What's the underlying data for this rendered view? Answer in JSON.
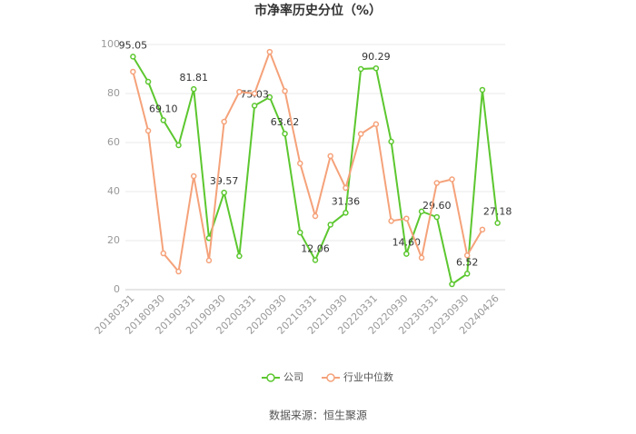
{
  "chart_data": {
    "type": "line",
    "title": "市净率历史分位（%）",
    "categories": [
      "20180331",
      null,
      "20180930",
      null,
      "20190331",
      null,
      "20190930",
      null,
      "20200331",
      null,
      "20200930",
      null,
      "20210331",
      null,
      "20210930",
      null,
      "20220331",
      null,
      "20220930",
      null,
      "20230331",
      null,
      "20230930",
      null,
      "20240426"
    ],
    "series": [
      {
        "name": "公司",
        "color": "#5cc72f",
        "values": [
          95.05,
          84.8,
          69.1,
          58.9,
          81.81,
          21,
          39.57,
          13.7,
          75.03,
          78.5,
          63.62,
          23.3,
          12.06,
          26.5,
          31.36,
          90,
          90.29,
          60.4,
          14.6,
          31.9,
          29.6,
          2.2,
          6.52,
          81.5,
          27.18
        ],
        "value_labels": [
          "95.05",
          null,
          "69.10",
          null,
          "81.81",
          null,
          "39.57",
          null,
          "75.03",
          null,
          "63.62",
          null,
          "12.06",
          null,
          "31.36",
          null,
          "90.29",
          null,
          "14.60",
          null,
          "29.60",
          null,
          "6.52",
          null,
          "27.18"
        ]
      },
      {
        "name": "行业中位数",
        "color": "#f5a27a",
        "values": [
          88.9,
          64.8,
          14.8,
          7.4,
          46.3,
          11.9,
          68.5,
          80.7,
          80,
          97,
          81,
          51.5,
          30,
          54.5,
          41.5,
          63.5,
          67.5,
          28,
          29,
          13,
          43.5,
          45,
          14,
          24.5,
          null
        ]
      }
    ],
    "ylim": [
      0,
      100
    ],
    "yticks": [
      0,
      20,
      40,
      60,
      80,
      100
    ],
    "grid": true,
    "legend": "bottom",
    "source": "数据来源：恒生聚源"
  }
}
